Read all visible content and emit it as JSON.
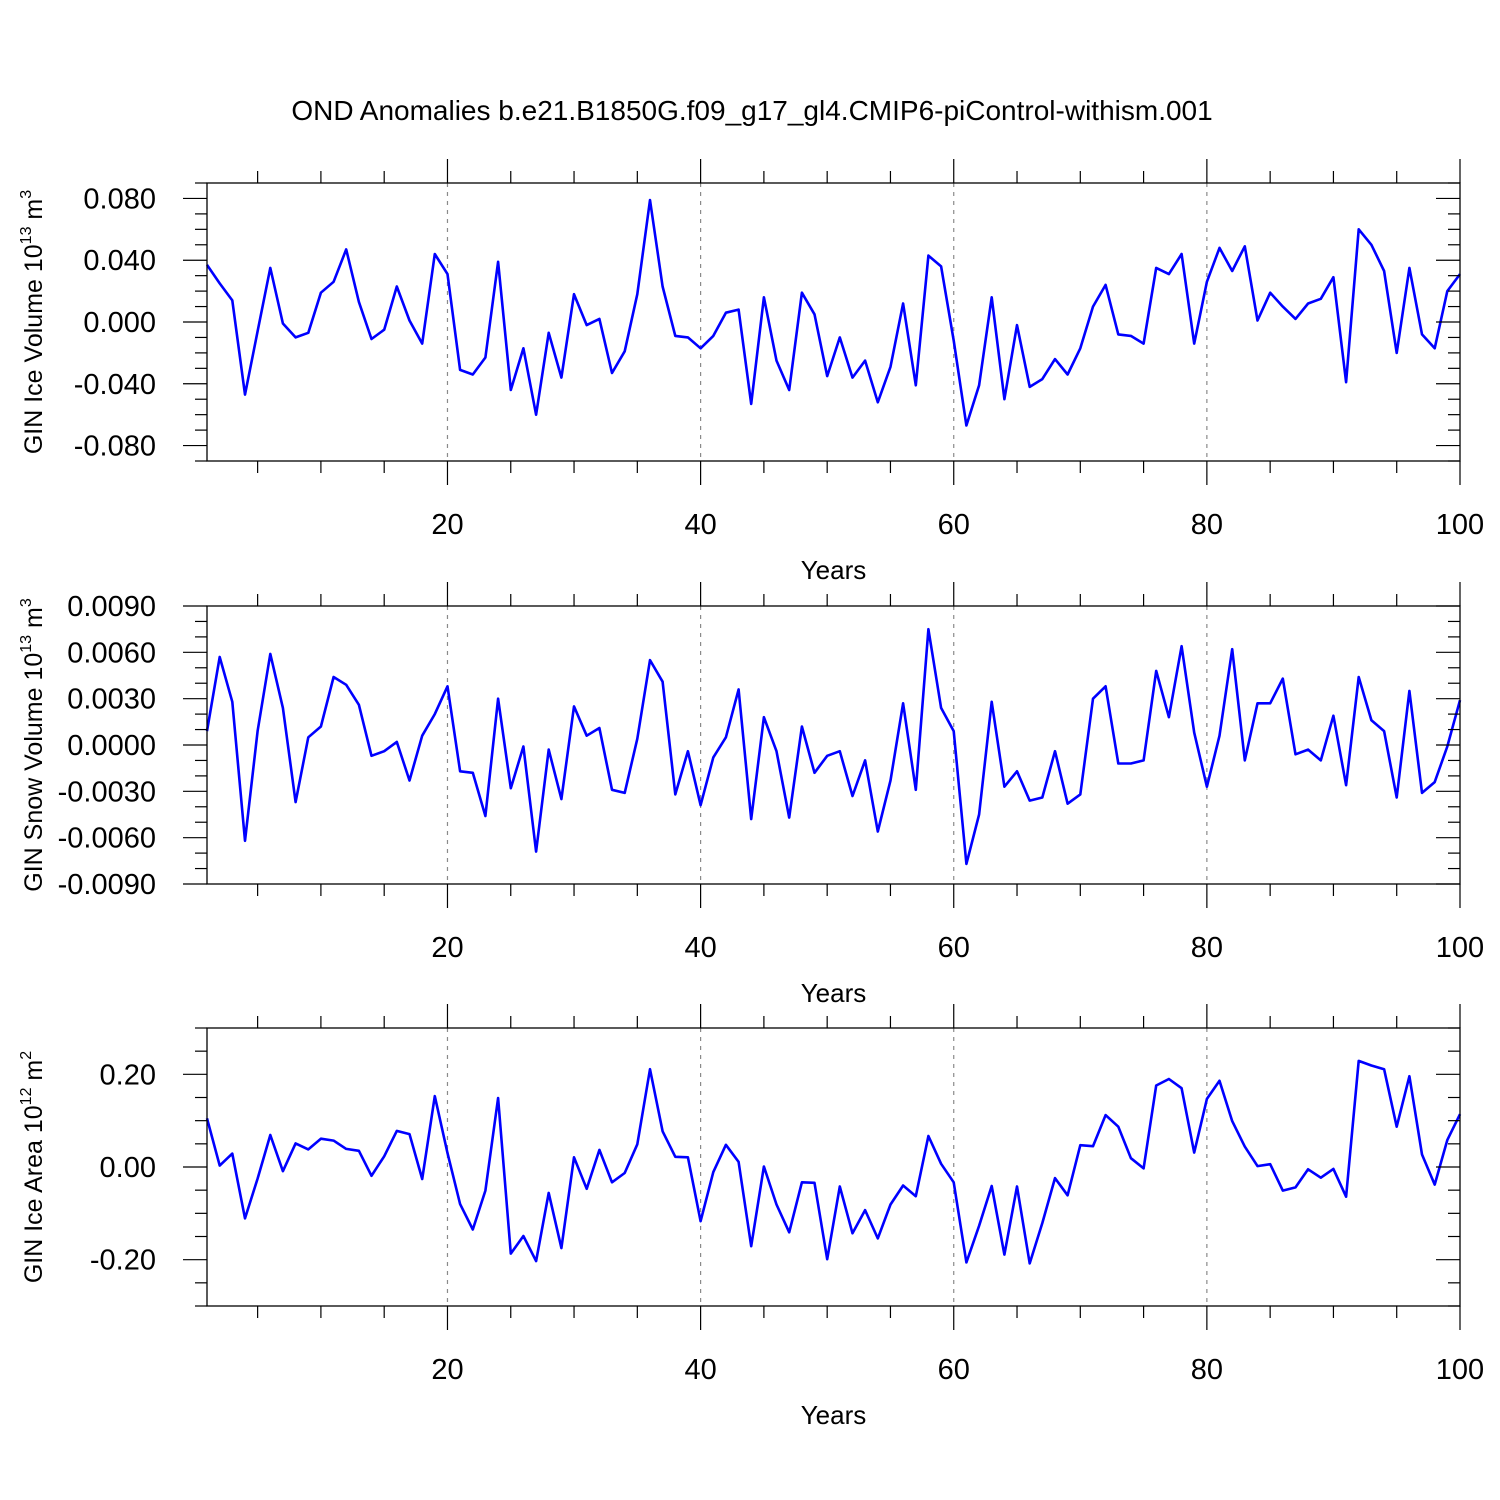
{
  "title": "OND Anomalies b.e21.B1850G.f09_g17_gl4.CMIP6-piControl-withism.001",
  "colors": {
    "line": "#0000ff",
    "frame": "#000000",
    "grid": "#8a8a8a"
  },
  "chart_data": [
    {
      "type": "line",
      "ylabel": "GIN Ice Volume 10",
      "ylabel_exp": "13",
      "ylabel_unit": " m",
      "ylabel_unit_exp": "3",
      "xlabel": "Years",
      "xlim": [
        1,
        100
      ],
      "ylim": [
        -0.09,
        0.09
      ],
      "yticks": [
        -0.08,
        -0.04,
        0.0,
        0.04,
        0.08
      ],
      "ytick_labels": [
        "-0.080",
        "-0.040",
        "0.000",
        "0.040",
        "0.080"
      ],
      "yminor_step": 0.01,
      "xticks": [
        20,
        40,
        60,
        80,
        100
      ],
      "xtick_labels": [
        "20",
        "40",
        "60",
        "80",
        "100"
      ],
      "xminor": [
        5,
        10,
        15,
        25,
        30,
        35,
        45,
        50,
        55,
        65,
        70,
        75,
        85,
        90,
        95
      ],
      "grid_x": [
        20,
        40,
        60,
        80
      ],
      "series": [
        {
          "x": [
            1,
            2,
            3,
            4,
            5,
            6,
            7,
            8,
            9,
            10,
            11,
            12,
            13,
            14,
            15,
            16,
            17,
            18,
            19,
            20,
            21,
            22,
            23,
            24,
            25,
            26,
            27,
            28,
            29,
            30,
            31,
            32,
            33,
            34,
            35,
            36,
            37,
            38,
            39,
            40,
            41,
            42,
            43,
            44,
            45,
            46,
            47,
            48,
            49,
            50,
            51,
            52,
            53,
            54,
            55,
            56,
            57,
            58,
            59,
            60,
            61,
            62,
            63,
            64,
            65,
            66,
            67,
            68,
            69,
            70,
            71,
            72,
            73,
            74,
            75,
            76,
            77,
            78,
            79,
            80,
            81,
            82,
            83,
            84,
            85,
            86,
            87,
            88,
            89,
            90,
            91,
            92,
            93,
            94,
            95,
            96,
            97,
            98,
            99,
            100
          ],
          "values": [
            0.037,
            0.025,
            0.014,
            -0.047,
            -0.006,
            0.035,
            -0.001,
            -0.01,
            -0.007,
            0.019,
            0.026,
            0.047,
            0.013,
            -0.011,
            -0.005,
            0.023,
            0.001,
            -0.014,
            0.044,
            0.031,
            -0.031,
            -0.034,
            -0.023,
            0.039,
            -0.044,
            -0.017,
            -0.06,
            -0.007,
            -0.036,
            0.018,
            -0.002,
            0.002,
            -0.033,
            -0.019,
            0.018,
            0.079,
            0.023,
            -0.009,
            -0.01,
            -0.017,
            -0.009,
            0.006,
            0.008,
            -0.053,
            0.016,
            -0.025,
            -0.044,
            0.019,
            0.005,
            -0.035,
            -0.01,
            -0.036,
            -0.025,
            -0.052,
            -0.029,
            0.012,
            -0.041,
            0.043,
            0.036,
            -0.012,
            -0.067,
            -0.041,
            0.016,
            -0.05,
            -0.002,
            -0.042,
            -0.037,
            -0.024,
            -0.034,
            -0.017,
            0.01,
            0.024,
            -0.008,
            -0.009,
            -0.014,
            0.035,
            0.031,
            0.044,
            -0.014,
            0.026,
            0.048,
            0.033,
            0.049,
            0.001,
            0.019,
            0.01,
            0.002,
            0.012,
            0.015,
            0.029,
            -0.039,
            0.06,
            0.05,
            0.033,
            -0.02,
            0.035,
            -0.008,
            -0.017,
            0.02,
            0.031
          ]
        }
      ]
    },
    {
      "type": "line",
      "ylabel": "GIN Snow Volume 10",
      "ylabel_exp": "13",
      "ylabel_unit": " m",
      "ylabel_unit_exp": "3",
      "xlabel": "Years",
      "xlim": [
        1,
        100
      ],
      "ylim": [
        -0.009,
        0.009
      ],
      "yticks": [
        -0.009,
        -0.006,
        -0.003,
        0.0,
        0.003,
        0.006,
        0.009
      ],
      "ytick_labels": [
        "-0.0090",
        "-0.0060",
        "-0.0030",
        "0.0000",
        "0.0030",
        "0.0060",
        "0.0090"
      ],
      "yminor_step": 0.001,
      "xticks": [
        20,
        40,
        60,
        80,
        100
      ],
      "xtick_labels": [
        "20",
        "40",
        "60",
        "80",
        "100"
      ],
      "xminor": [
        5,
        10,
        15,
        25,
        30,
        35,
        45,
        50,
        55,
        65,
        70,
        75,
        85,
        90,
        95
      ],
      "grid_x": [
        20,
        40,
        60,
        80
      ],
      "series": [
        {
          "x": [
            1,
            2,
            3,
            4,
            5,
            6,
            7,
            8,
            9,
            10,
            11,
            12,
            13,
            14,
            15,
            16,
            17,
            18,
            19,
            20,
            21,
            22,
            23,
            24,
            25,
            26,
            27,
            28,
            29,
            30,
            31,
            32,
            33,
            34,
            35,
            36,
            37,
            38,
            39,
            40,
            41,
            42,
            43,
            44,
            45,
            46,
            47,
            48,
            49,
            50,
            51,
            52,
            53,
            54,
            55,
            56,
            57,
            58,
            59,
            60,
            61,
            62,
            63,
            64,
            65,
            66,
            67,
            68,
            69,
            70,
            71,
            72,
            73,
            74,
            75,
            76,
            77,
            78,
            79,
            80,
            81,
            82,
            83,
            84,
            85,
            86,
            87,
            88,
            89,
            90,
            91,
            92,
            93,
            94,
            95,
            96,
            97,
            98,
            99,
            100
          ],
          "values": [
            0.0009,
            0.0057,
            0.0028,
            -0.0062,
            0.0009,
            0.0059,
            0.0024,
            -0.0037,
            0.0005,
            0.0012,
            0.0044,
            0.0039,
            0.0026,
            -0.0007,
            -0.0004,
            0.0002,
            -0.0023,
            0.0006,
            0.002,
            0.0038,
            -0.0017,
            -0.0018,
            -0.0046,
            0.003,
            -0.0028,
            -0.0001,
            -0.0069,
            -0.0003,
            -0.0035,
            0.0025,
            0.0006,
            0.0011,
            -0.0029,
            -0.0031,
            0.0004,
            0.0055,
            0.0041,
            -0.0032,
            -0.0004,
            -0.0039,
            -0.0008,
            0.0005,
            0.0036,
            -0.0048,
            0.0018,
            -0.0004,
            -0.0047,
            0.0012,
            -0.0018,
            -0.0007,
            -0.0004,
            -0.0033,
            -0.001,
            -0.0056,
            -0.0023,
            0.0027,
            -0.0029,
            0.0075,
            0.0024,
            0.0009,
            -0.0077,
            -0.0045,
            0.0028,
            -0.0027,
            -0.0017,
            -0.0036,
            -0.0034,
            -0.0004,
            -0.0038,
            -0.0032,
            0.003,
            0.0038,
            -0.0012,
            -0.0012,
            -0.001,
            0.0048,
            0.0018,
            0.0064,
            0.0008,
            -0.0027,
            0.0006,
            0.0062,
            -0.001,
            0.0027,
            0.0027,
            0.0043,
            -0.0006,
            -0.0003,
            -0.001,
            0.0019,
            -0.0026,
            0.0044,
            0.0016,
            0.0009,
            -0.0034,
            0.0035,
            -0.0031,
            -0.0024,
            -0.0001,
            0.0029
          ]
        }
      ]
    },
    {
      "type": "line",
      "ylabel": "GIN Ice Area 10",
      "ylabel_exp": "12",
      "ylabel_unit": " m",
      "ylabel_unit_exp": "2",
      "xlabel": "Years",
      "xlim": [
        1,
        100
      ],
      "ylim": [
        -0.3,
        0.3
      ],
      "yticks": [
        -0.2,
        0.0,
        0.2
      ],
      "ytick_labels": [
        "-0.20",
        "0.00",
        "0.20"
      ],
      "yminor_step": 0.05,
      "xticks": [
        20,
        40,
        60,
        80,
        100
      ],
      "xtick_labels": [
        "20",
        "40",
        "60",
        "80",
        "100"
      ],
      "xminor": [
        5,
        10,
        15,
        25,
        30,
        35,
        45,
        50,
        55,
        65,
        70,
        75,
        85,
        90,
        95
      ],
      "grid_x": [
        20,
        40,
        60,
        80
      ],
      "series": [
        {
          "x": [
            1,
            2,
            3,
            4,
            5,
            6,
            7,
            8,
            9,
            10,
            11,
            12,
            13,
            14,
            15,
            16,
            17,
            18,
            19,
            20,
            21,
            22,
            23,
            24,
            25,
            26,
            27,
            28,
            29,
            30,
            31,
            32,
            33,
            34,
            35,
            36,
            37,
            38,
            39,
            40,
            41,
            42,
            43,
            44,
            45,
            46,
            47,
            48,
            49,
            50,
            51,
            52,
            53,
            54,
            55,
            56,
            57,
            58,
            59,
            60,
            61,
            62,
            63,
            64,
            65,
            66,
            67,
            68,
            69,
            70,
            71,
            72,
            73,
            74,
            75,
            76,
            77,
            78,
            79,
            80,
            81,
            82,
            83,
            84,
            85,
            86,
            87,
            88,
            89,
            90,
            91,
            92,
            93,
            94,
            95,
            96,
            97,
            98,
            99,
            100
          ],
          "values": [
            0.105,
            0.003,
            0.029,
            -0.111,
            -0.025,
            0.069,
            -0.009,
            0.051,
            0.038,
            0.061,
            0.057,
            0.039,
            0.035,
            -0.019,
            0.023,
            0.078,
            0.071,
            -0.026,
            0.153,
            0.03,
            -0.08,
            -0.135,
            -0.051,
            0.149,
            -0.187,
            -0.149,
            -0.203,
            -0.056,
            -0.175,
            0.021,
            -0.047,
            0.037,
            -0.033,
            -0.013,
            0.049,
            0.211,
            0.077,
            0.022,
            0.021,
            -0.117,
            -0.011,
            0.048,
            0.011,
            -0.171,
            0.001,
            -0.081,
            -0.141,
            -0.033,
            -0.034,
            -0.199,
            -0.042,
            -0.143,
            -0.093,
            -0.154,
            -0.081,
            -0.04,
            -0.063,
            0.067,
            0.007,
            -0.033,
            -0.206,
            -0.127,
            -0.041,
            -0.189,
            -0.042,
            -0.208,
            -0.121,
            -0.024,
            -0.061,
            0.047,
            0.045,
            0.112,
            0.087,
            0.019,
            -0.003,
            0.176,
            0.19,
            0.17,
            0.031,
            0.147,
            0.186,
            0.099,
            0.044,
            0.002,
            0.006,
            -0.051,
            -0.044,
            -0.005,
            -0.023,
            -0.004,
            -0.064,
            0.229,
            0.219,
            0.211,
            0.087,
            0.196,
            0.027,
            -0.038,
            0.058,
            0.114
          ]
        }
      ]
    }
  ]
}
